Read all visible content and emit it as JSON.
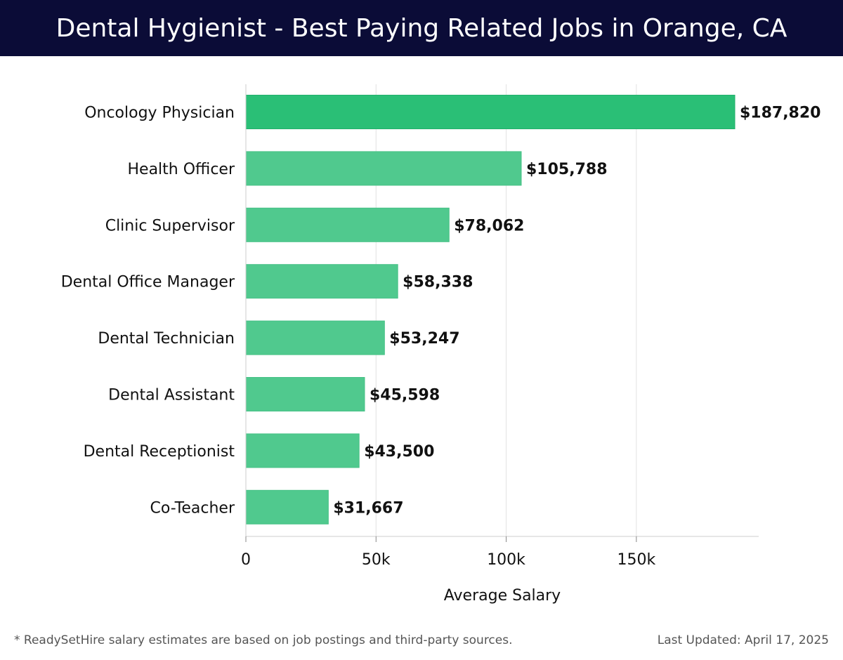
{
  "header": {
    "title": "Dental Hygienist - Best Paying Related Jobs in Orange, CA"
  },
  "chart_data": {
    "type": "bar",
    "orientation": "horizontal",
    "title": "Dental Hygienist - Best Paying Related Jobs in Orange, CA",
    "xlabel": "Average Salary",
    "ylabel": "",
    "xlim": [
      0,
      197000
    ],
    "x_ticks": [
      0,
      50000,
      100000,
      150000
    ],
    "x_tick_labels": [
      "0",
      "50k",
      "100k",
      "150k"
    ],
    "grid": true,
    "categories": [
      "Oncology Physician",
      "Health Officer",
      "Clinic Supervisor",
      "Dental Office Manager",
      "Dental Technician",
      "Dental Assistant",
      "Dental Receptionist",
      "Co-Teacher"
    ],
    "values": [
      187820,
      105788,
      78062,
      58338,
      53247,
      45598,
      43500,
      31667
    ],
    "data_labels": [
      "$187,820",
      "$105,788",
      "$78,062",
      "$58,338",
      "$53,247",
      "$45,598",
      "$43,500",
      "$31,667"
    ],
    "colors": {
      "top_bar": "#2abf76",
      "other_bars": "#50c98e",
      "grid": "#e2e2e2",
      "axis": "#cccccc"
    }
  },
  "footer": {
    "note": "* ReadySetHire salary estimates are based on job postings and third-party sources.",
    "updated": "Last Updated: April 17, 2025"
  }
}
